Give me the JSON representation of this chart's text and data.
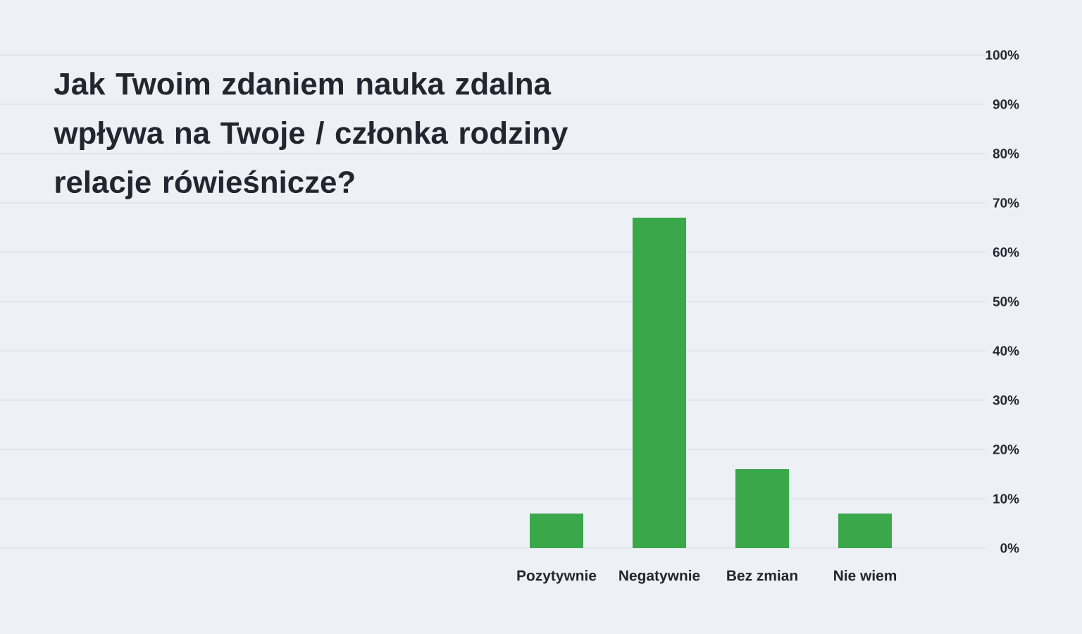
{
  "chart_data": {
    "type": "bar",
    "title": "Jak Twoim zdaniem nauka zdalna wpływa na Twoje / członka rodziny relacje rówieśnicze?",
    "categories": [
      "Pozytywnie",
      "Negatywnie",
      "Bez zmian",
      "Nie wiem"
    ],
    "values": [
      7,
      67,
      16,
      7
    ],
    "color": "#3aa84a",
    "ylim": [
      0,
      100
    ],
    "yticks": [
      {
        "value": 0,
        "label": "0%"
      },
      {
        "value": 10,
        "label": "10%"
      },
      {
        "value": 20,
        "label": "20%"
      },
      {
        "value": 30,
        "label": "30%"
      },
      {
        "value": 40,
        "label": "40%"
      },
      {
        "value": 50,
        "label": "50%"
      },
      {
        "value": 60,
        "label": "60%"
      },
      {
        "value": 70,
        "label": "70%"
      },
      {
        "value": 80,
        "label": "80%"
      },
      {
        "value": 90,
        "label": "90%"
      },
      {
        "value": 100,
        "label": "100%"
      }
    ],
    "grid": "y"
  }
}
